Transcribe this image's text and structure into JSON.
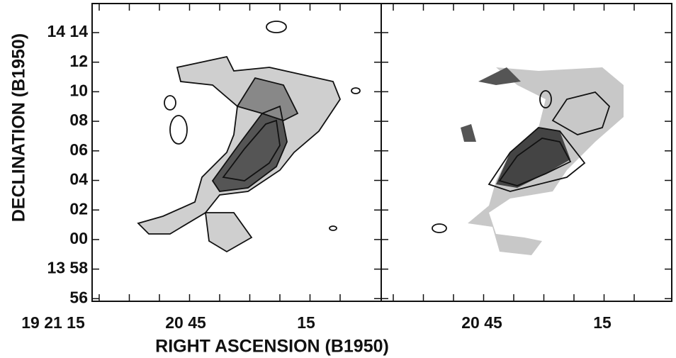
{
  "figure": {
    "y_axis_label": "DECLINATION (B1950)",
    "x_axis_label": "RIGHT ASCENSION (B1950)",
    "y_ticks": [
      "14 14",
      "12",
      "10",
      "08",
      "06",
      "04",
      "02",
      "00",
      "13 58",
      "56"
    ],
    "left_panel_x_ticks": [
      "19 21 15",
      "20 45",
      "15"
    ],
    "right_panel_x_ticks": [
      "20 45",
      "15"
    ]
  }
}
